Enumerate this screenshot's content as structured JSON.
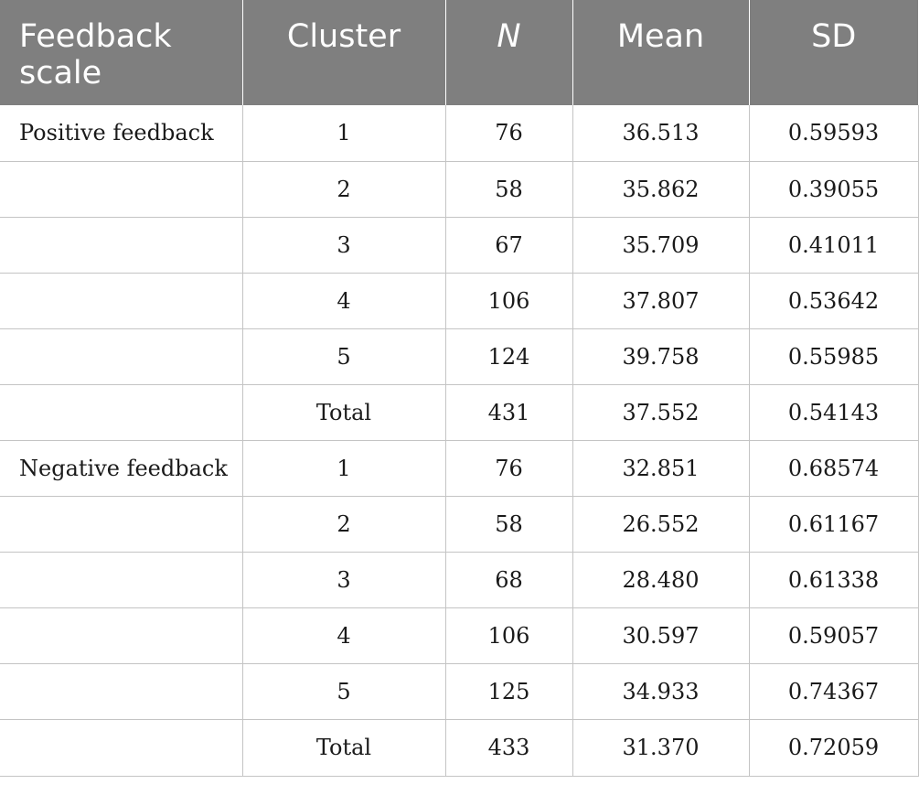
{
  "table": {
    "headers": [
      "Feedback scale",
      "Cluster",
      "N",
      "Mean",
      "SD"
    ],
    "rows": [
      {
        "scale": "Positive feedback",
        "cluster": "1",
        "n": "76",
        "mean": "36.513",
        "sd": "0.59593"
      },
      {
        "scale": "",
        "cluster": "2",
        "n": "58",
        "mean": "35.862",
        "sd": "0.39055"
      },
      {
        "scale": "",
        "cluster": "3",
        "n": "67",
        "mean": "35.709",
        "sd": "0.41011"
      },
      {
        "scale": "",
        "cluster": "4",
        "n": "106",
        "mean": "37.807",
        "sd": "0.53642"
      },
      {
        "scale": "",
        "cluster": "5",
        "n": "124",
        "mean": "39.758",
        "sd": "0.55985"
      },
      {
        "scale": "",
        "cluster": "Total",
        "n": "431",
        "mean": "37.552",
        "sd": "0.54143"
      },
      {
        "scale": "Negative feedback",
        "cluster": "1",
        "n": "76",
        "mean": "32.851",
        "sd": "0.68574"
      },
      {
        "scale": "",
        "cluster": "2",
        "n": "58",
        "mean": "26.552",
        "sd": "0.61167"
      },
      {
        "scale": "",
        "cluster": "3",
        "n": "68",
        "mean": "28.480",
        "sd": "0.61338"
      },
      {
        "scale": "",
        "cluster": "4",
        "n": "106",
        "mean": "30.597",
        "sd": "0.59057"
      },
      {
        "scale": "",
        "cluster": "5",
        "n": "125",
        "mean": "34.933",
        "sd": "0.74367"
      },
      {
        "scale": "",
        "cluster": "Total",
        "n": "433",
        "mean": "31.370",
        "sd": "0.72059"
      }
    ]
  }
}
